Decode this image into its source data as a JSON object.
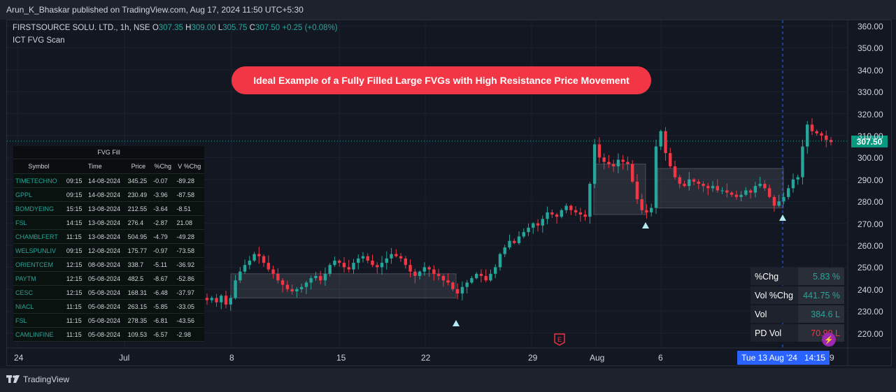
{
  "header": {
    "text": "Arun_K_Bhaskar published on TradingView.com, Aug 17, 2024 11:50 UTC+5:30"
  },
  "legend": {
    "symbol": "FIRSTSOURCE SOLU. LTD., 1h, NSE",
    "o_label": "O",
    "o_value": "307.35",
    "h_label": "H",
    "h_value": "309.00",
    "l_label": "L",
    "l_value": "305.75",
    "c_label": "C",
    "c_value": "307.50",
    "change": "+0.25 (+0.08%)",
    "indicator": "ICT FVG Scan"
  },
  "banner": "Ideal Example of a Fully Filled Large FVGs with High Resistance Price Movement",
  "fvg_table": {
    "title": "FVG Fill",
    "headers": [
      "Symbol",
      "Time",
      "Price",
      "%Chg",
      "V %Chg"
    ],
    "rows": [
      [
        "TIMETECHNO",
        "09:15",
        "14-08-2024",
        "345.25",
        "-0.07",
        "-89.28"
      ],
      [
        "GPPL",
        "09:15",
        "14-08-2024",
        "230.49",
        "-3.96",
        "-87.58"
      ],
      [
        "BOMDYEING",
        "15:15",
        "13-08-2024",
        "212.55",
        "-3.64",
        "-8.51"
      ],
      [
        "FSL",
        "14:15",
        "13-08-2024",
        "276.4",
        "-2.87",
        "21.08"
      ],
      [
        "CHAMBLFERT",
        "11:15",
        "13-08-2024",
        "504.95",
        "-4.79",
        "-49.28"
      ],
      [
        "WELSPUNLIV",
        "09:15",
        "12-08-2024",
        "175.77",
        "-0.97",
        "-73.58"
      ],
      [
        "ORIENTCEM",
        "12:15",
        "08-08-2024",
        "338.7",
        "-5.11",
        "-36.92"
      ],
      [
        "PAYTM",
        "12:15",
        "05-08-2024",
        "482.5",
        "-8.67",
        "-52.86"
      ],
      [
        "CESC",
        "12:15",
        "05-08-2024",
        "168.31",
        "-6.48",
        "-37.97"
      ],
      [
        "NIACL",
        "11:15",
        "05-08-2024",
        "263.15",
        "-5.85",
        "-33.05"
      ],
      [
        "FSL",
        "11:15",
        "05-08-2024",
        "278.35",
        "-6.81",
        "-43.56"
      ],
      [
        "CAMLINFINE",
        "11:15",
        "05-08-2024",
        "109.53",
        "-6.57",
        "-2.98"
      ]
    ]
  },
  "stats": [
    {
      "label": "%Chg",
      "value": "5.83 %",
      "color": "#26a69a"
    },
    {
      "label": "Vol %Chg",
      "value": "441.75 %",
      "color": "#26a69a"
    },
    {
      "label": "Vol",
      "value": "384.6 L",
      "color": "#26a69a"
    },
    {
      "label": "PD Vol",
      "value": "70.99 L",
      "color": "#f23645"
    }
  ],
  "last_price": "307.50",
  "crosshair_date": {
    "date": "Tue 13 Aug '24",
    "time": "14:15"
  },
  "price_axis": [
    "360.00",
    "350.00",
    "340.00",
    "330.00",
    "320.00",
    "310.00",
    "300.00",
    "290.00",
    "280.00",
    "270.00",
    "260.00",
    "250.00",
    "240.00",
    "230.00",
    "220.00"
  ],
  "time_axis": [
    "24",
    "Jul",
    "8",
    "15",
    "22",
    "29",
    "Aug",
    "6",
    "9"
  ],
  "earnings_badge": "E",
  "footer": {
    "brand": "TradingView"
  },
  "colors": {
    "up": "#26a69a",
    "down": "#f23645",
    "background": "#131722",
    "accent": "#2962ff"
  },
  "chart_data": {
    "type": "candlestick",
    "price_range": [
      215,
      365
    ],
    "fvg_zones": [
      {
        "from": "Jul 8",
        "to": "Jul 24",
        "low": 236,
        "high": 247
      },
      {
        "from": "Aug 1",
        "to": "Aug 5",
        "low": 274,
        "high": 297
      },
      {
        "from": "Aug 6",
        "to": "Aug 13",
        "low": 277,
        "high": 295
      }
    ],
    "closes": [
      235,
      236,
      234,
      237,
      233,
      236,
      244,
      248,
      251,
      253,
      256,
      255,
      252,
      249,
      247,
      244,
      242,
      240,
      239,
      240,
      241,
      243,
      245,
      246,
      244,
      247,
      251,
      253,
      252,
      250,
      249,
      252,
      254,
      255,
      253,
      251,
      250,
      252,
      254,
      256,
      255,
      254,
      251,
      248,
      246,
      248,
      250,
      249,
      247,
      246,
      244,
      243,
      240,
      238,
      241,
      243,
      245,
      247,
      246,
      244,
      247,
      250,
      256,
      259,
      262,
      261,
      264,
      266,
      268,
      270,
      269,
      272,
      275,
      274,
      273,
      276,
      278,
      276,
      275,
      274,
      273,
      288,
      306,
      300,
      298,
      297,
      296,
      299,
      298,
      297,
      289,
      281,
      276,
      275,
      277,
      305,
      312,
      302,
      296,
      291,
      288,
      287,
      290,
      289,
      288,
      287,
      286,
      287,
      285,
      285,
      284,
      283,
      282,
      283,
      285,
      284,
      287,
      288,
      286,
      282,
      278,
      280,
      282,
      286,
      290,
      291,
      305,
      315,
      312,
      311,
      310,
      308,
      307
    ]
  }
}
